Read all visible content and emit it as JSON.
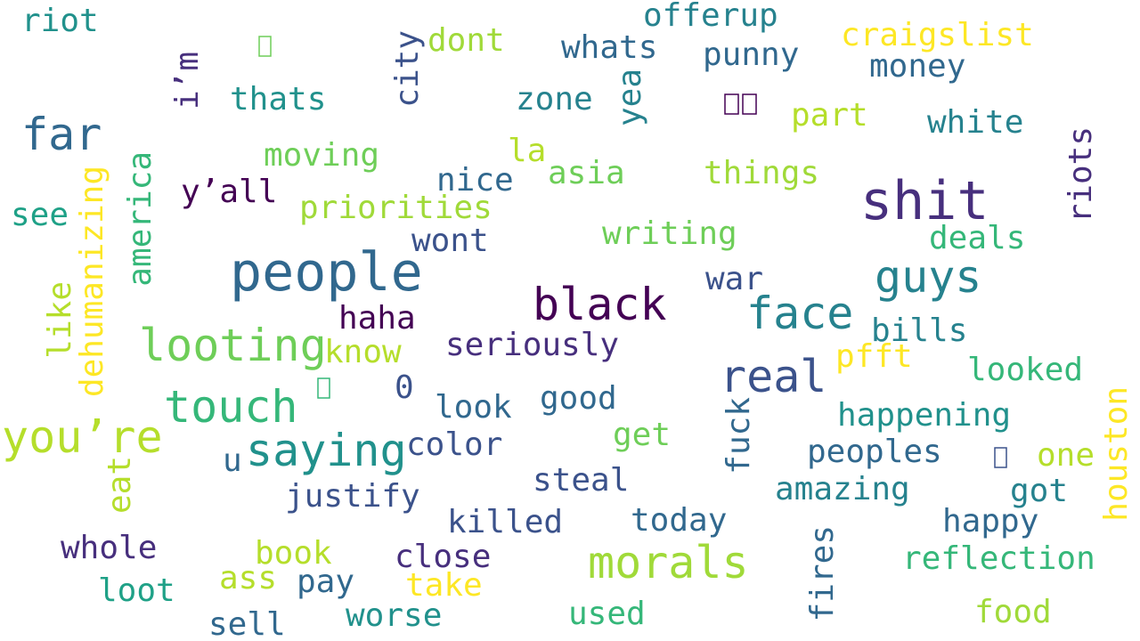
{
  "palette": {
    "dark_purple": "#440154",
    "indigo": "#472f7d",
    "slate_blue": "#3b528b",
    "steel_blue": "#31688e",
    "teal_blue": "#26828e",
    "teal": "#21918c",
    "sea_green": "#1fa187",
    "green": "#35b779",
    "light_green": "#6ece58",
    "lime": "#a0da39",
    "yellow_green": "#b5de2b",
    "yellow": "#fde725"
  },
  "words": [
    {
      "text": "riot",
      "color": "#21918c"
    },
    {
      "text": "offerup",
      "color": "#26828e"
    },
    {
      "text": "dont",
      "color": "#a0da39"
    },
    {
      "text": "craigslist",
      "color": "#fde725"
    },
    {
      "text": "whats",
      "color": "#31688e"
    },
    {
      "text": "punny",
      "color": "#31688e"
    },
    {
      "text": "money",
      "color": "#31688e"
    },
    {
      "text": "i’m",
      "color": "#472f7d"
    },
    {
      "text": "city",
      "color": "#3b528b"
    },
    {
      "text": "thats",
      "color": "#21918c"
    },
    {
      "text": "zone",
      "color": "#26828e"
    },
    {
      "text": "yea",
      "color": "#26828e"
    },
    {
      "text": "part",
      "color": "#b5de2b"
    },
    {
      "text": "far",
      "color": "#31688e"
    },
    {
      "text": "white",
      "color": "#26828e"
    },
    {
      "text": "moving",
      "color": "#6ece58"
    },
    {
      "text": "la",
      "color": "#b5de2b"
    },
    {
      "text": "asia",
      "color": "#6ece58"
    },
    {
      "text": "things",
      "color": "#a0da39"
    },
    {
      "text": "shit",
      "color": "#472f7d"
    },
    {
      "text": "riots",
      "color": "#472f7d"
    },
    {
      "text": "america",
      "color": "#35b779"
    },
    {
      "text": "nice",
      "color": "#31688e"
    },
    {
      "text": "y’all",
      "color": "#440154"
    },
    {
      "text": "see",
      "color": "#1fa187"
    },
    {
      "text": "priorities",
      "color": "#a0da39"
    },
    {
      "text": "dehumanizing",
      "color": "#fde725"
    },
    {
      "text": "writing",
      "color": "#6ece58"
    },
    {
      "text": "deals",
      "color": "#35b779"
    },
    {
      "text": "wont",
      "color": "#3b528b"
    },
    {
      "text": "people",
      "color": "#31688e"
    },
    {
      "text": "guys",
      "color": "#26828e"
    },
    {
      "text": "war",
      "color": "#3b528b"
    },
    {
      "text": "like",
      "color": "#b5de2b"
    },
    {
      "text": "black",
      "color": "#440154"
    },
    {
      "text": "face",
      "color": "#26828e"
    },
    {
      "text": "haha",
      "color": "#440154"
    },
    {
      "text": "bills",
      "color": "#26828e"
    },
    {
      "text": "looting",
      "color": "#6ece58"
    },
    {
      "text": "know",
      "color": "#b5de2b"
    },
    {
      "text": "seriously",
      "color": "#472f7d"
    },
    {
      "text": "pfft",
      "color": "#fde725"
    },
    {
      "text": "real",
      "color": "#3b528b"
    },
    {
      "text": "looked",
      "color": "#35b779"
    },
    {
      "text": "0",
      "color": "#3b528b"
    },
    {
      "text": "touch",
      "color": "#35b779"
    },
    {
      "text": "look",
      "color": "#31688e"
    },
    {
      "text": "good",
      "color": "#31688e"
    },
    {
      "text": "houston",
      "color": "#fde725"
    },
    {
      "text": "happening",
      "color": "#21918c"
    },
    {
      "text": "you’re",
      "color": "#b5de2b"
    },
    {
      "text": "fuck",
      "color": "#31688e"
    },
    {
      "text": "get",
      "color": "#6ece58"
    },
    {
      "text": "saying",
      "color": "#21918c"
    },
    {
      "text": "color",
      "color": "#3b528b"
    },
    {
      "text": "peoples",
      "color": "#31688e"
    },
    {
      "text": "one",
      "color": "#b5de2b"
    },
    {
      "text": "u",
      "color": "#31688e"
    },
    {
      "text": "eat",
      "color": "#b5de2b"
    },
    {
      "text": "steal",
      "color": "#3b528b"
    },
    {
      "text": "amazing",
      "color": "#26828e"
    },
    {
      "text": "justify",
      "color": "#3b528b"
    },
    {
      "text": "got",
      "color": "#26828e"
    },
    {
      "text": "killed",
      "color": "#3b528b"
    },
    {
      "text": "today",
      "color": "#31688e"
    },
    {
      "text": "happy",
      "color": "#31688e"
    },
    {
      "text": "whole",
      "color": "#472f7d"
    },
    {
      "text": "book",
      "color": "#b5de2b"
    },
    {
      "text": "morals",
      "color": "#a0da39"
    },
    {
      "text": "fires",
      "color": "#31688e"
    },
    {
      "text": "close",
      "color": "#472f7d"
    },
    {
      "text": "reflection",
      "color": "#35b779"
    },
    {
      "text": "ass",
      "color": "#b5de2b"
    },
    {
      "text": "pay",
      "color": "#31688e"
    },
    {
      "text": "take",
      "color": "#fde725"
    },
    {
      "text": "loot",
      "color": "#1fa187"
    },
    {
      "text": "used",
      "color": "#35b779"
    },
    {
      "text": "food",
      "color": "#a0da39"
    },
    {
      "text": "sell",
      "color": "#31688e"
    },
    {
      "text": "worse",
      "color": "#21918c"
    }
  ]
}
